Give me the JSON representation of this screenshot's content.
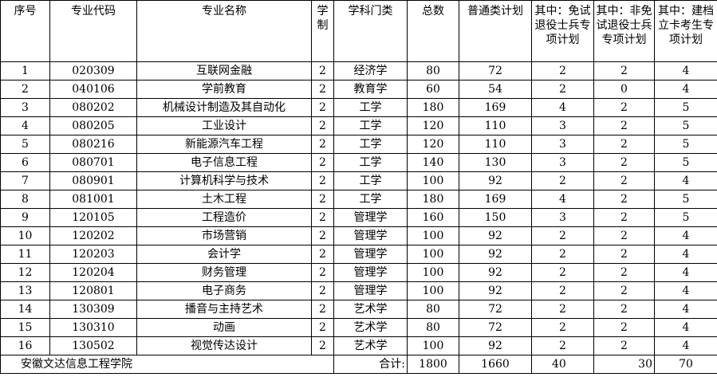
{
  "headers": [
    "序号",
    "专业代码",
    "专业名称",
    "学制",
    "学科门类",
    "总数",
    "普通类计划",
    "其中：免试退役士兵专项计划",
    "其中：非免试退役士兵专项计划",
    "其中：建档立卡考生专项计划"
  ],
  "rows": [
    [
      "1",
      "020309",
      "互联网金融",
      "2",
      "经济学",
      "80",
      "72",
      "2",
      "2",
      "4"
    ],
    [
      "2",
      "040106",
      "学前教育",
      "2",
      "教育学",
      "60",
      "54",
      "2",
      "0",
      "4"
    ],
    [
      "3",
      "080202",
      "机械设计制造及其自动化",
      "2",
      "工学",
      "180",
      "169",
      "4",
      "2",
      "5"
    ],
    [
      "4",
      "080205",
      "工业设计",
      "2",
      "工学",
      "120",
      "110",
      "3",
      "2",
      "5"
    ],
    [
      "5",
      "080216",
      "新能源汽车工程",
      "2",
      "工学",
      "120",
      "110",
      "3",
      "2",
      "5"
    ],
    [
      "6",
      "080701",
      "电子信息工程",
      "2",
      "工学",
      "140",
      "130",
      "3",
      "2",
      "5"
    ],
    [
      "7",
      "080901",
      "计算机科学与技术",
      "2",
      "工学",
      "100",
      "92",
      "2",
      "2",
      "4"
    ],
    [
      "8",
      "081001",
      "土木工程",
      "2",
      "工学",
      "180",
      "169",
      "4",
      "2",
      "5"
    ],
    [
      "9",
      "120105",
      "工程造价",
      "2",
      "管理学",
      "160",
      "150",
      "3",
      "2",
      "5"
    ],
    [
      "10",
      "120202",
      "市场营销",
      "2",
      "管理学",
      "100",
      "92",
      "2",
      "2",
      "4"
    ],
    [
      "11",
      "120203",
      "会计学",
      "2",
      "管理学",
      "100",
      "92",
      "2",
      "2",
      "4"
    ],
    [
      "12",
      "120204",
      "财务管理",
      "2",
      "管理学",
      "100",
      "92",
      "2",
      "2",
      "4"
    ],
    [
      "13",
      "120801",
      "电子商务",
      "2",
      "管理学",
      "100",
      "92",
      "2",
      "2",
      "4"
    ],
    [
      "14",
      "130309",
      "播音与主持艺术",
      "2",
      "艺术学",
      "80",
      "72",
      "2",
      "2",
      "4"
    ],
    [
      "15",
      "130310",
      "动画",
      "2",
      "艺术学",
      "80",
      "72",
      "2",
      "2",
      "4"
    ],
    [
      "16",
      "130502",
      "视觉传达设计",
      "2",
      "艺术学",
      "100",
      "92",
      "2",
      "2",
      "4"
    ]
  ],
  "footer": {
    "school": "安徽文达信息工程学院",
    "total_label": "合计:",
    "total": "1800",
    "regular": "1660",
    "exempt_veterans": "40",
    "non_exempt_veterans": "30",
    "poverty": "70"
  }
}
